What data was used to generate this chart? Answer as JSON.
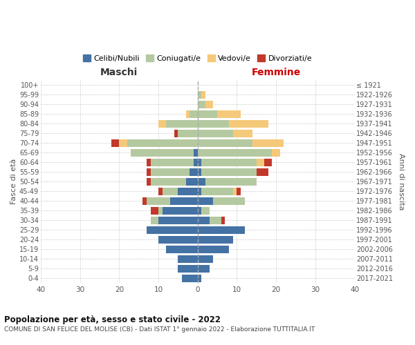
{
  "age_groups": [
    "0-4",
    "5-9",
    "10-14",
    "15-19",
    "20-24",
    "25-29",
    "30-34",
    "35-39",
    "40-44",
    "45-49",
    "50-54",
    "55-59",
    "60-64",
    "65-69",
    "70-74",
    "75-79",
    "80-84",
    "85-89",
    "90-94",
    "95-99",
    "100+"
  ],
  "birth_years": [
    "2017-2021",
    "2012-2016",
    "2007-2011",
    "2002-2006",
    "1997-2001",
    "1992-1996",
    "1987-1991",
    "1982-1986",
    "1977-1981",
    "1972-1976",
    "1967-1971",
    "1962-1966",
    "1957-1961",
    "1952-1956",
    "1947-1951",
    "1942-1946",
    "1937-1941",
    "1932-1936",
    "1927-1931",
    "1922-1926",
    "≤ 1921"
  ],
  "males": {
    "celibi": [
      4,
      5,
      5,
      8,
      10,
      13,
      10,
      9,
      7,
      5,
      3,
      2,
      1,
      1,
      0,
      0,
      0,
      0,
      0,
      0,
      0
    ],
    "coniugati": [
      0,
      0,
      0,
      0,
      0,
      0,
      2,
      1,
      6,
      4,
      9,
      10,
      11,
      16,
      18,
      5,
      8,
      2,
      0,
      0,
      0
    ],
    "vedovi": [
      0,
      0,
      0,
      0,
      0,
      0,
      0,
      0,
      0,
      0,
      0,
      0,
      0,
      0,
      2,
      0,
      2,
      1,
      0,
      0,
      0
    ],
    "divorziati": [
      0,
      0,
      0,
      0,
      0,
      0,
      0,
      2,
      1,
      1,
      1,
      1,
      1,
      0,
      2,
      1,
      0,
      0,
      0,
      0,
      0
    ]
  },
  "females": {
    "celibi": [
      1,
      3,
      4,
      8,
      9,
      12,
      3,
      1,
      4,
      1,
      2,
      1,
      1,
      0,
      0,
      0,
      0,
      0,
      0,
      0,
      0
    ],
    "coniugati": [
      0,
      0,
      0,
      0,
      0,
      0,
      3,
      2,
      8,
      8,
      13,
      14,
      14,
      19,
      14,
      9,
      8,
      5,
      2,
      1,
      0
    ],
    "vedovi": [
      0,
      0,
      0,
      0,
      0,
      0,
      0,
      0,
      0,
      1,
      0,
      0,
      2,
      2,
      8,
      5,
      10,
      6,
      2,
      1,
      0
    ],
    "divorziati": [
      0,
      0,
      0,
      0,
      0,
      0,
      1,
      0,
      0,
      1,
      0,
      3,
      2,
      0,
      0,
      0,
      0,
      0,
      0,
      0,
      0
    ]
  },
  "colors": {
    "celibi": "#4472a4",
    "coniugati": "#b5c9a0",
    "vedovi": "#f5c97a",
    "divorziati": "#c0392b"
  },
  "title": "Popolazione per età, sesso e stato civile - 2022",
  "subtitle": "COMUNE DI SAN FELICE DEL MOLISE (CB) - Dati ISTAT 1° gennaio 2022 - Elaborazione TUTTITALIA.IT",
  "xlabel_left": "Maschi",
  "xlabel_right": "Femmine",
  "ylabel_left": "Fasce di età",
  "ylabel_right": "Anni di nascita",
  "xlim": 40,
  "legend_labels": [
    "Celibi/Nubili",
    "Coniugati/e",
    "Vedovi/e",
    "Divorziati/e"
  ],
  "background_color": "#ffffff",
  "femmine_color": "#cc0000",
  "maschi_color": "#333333"
}
